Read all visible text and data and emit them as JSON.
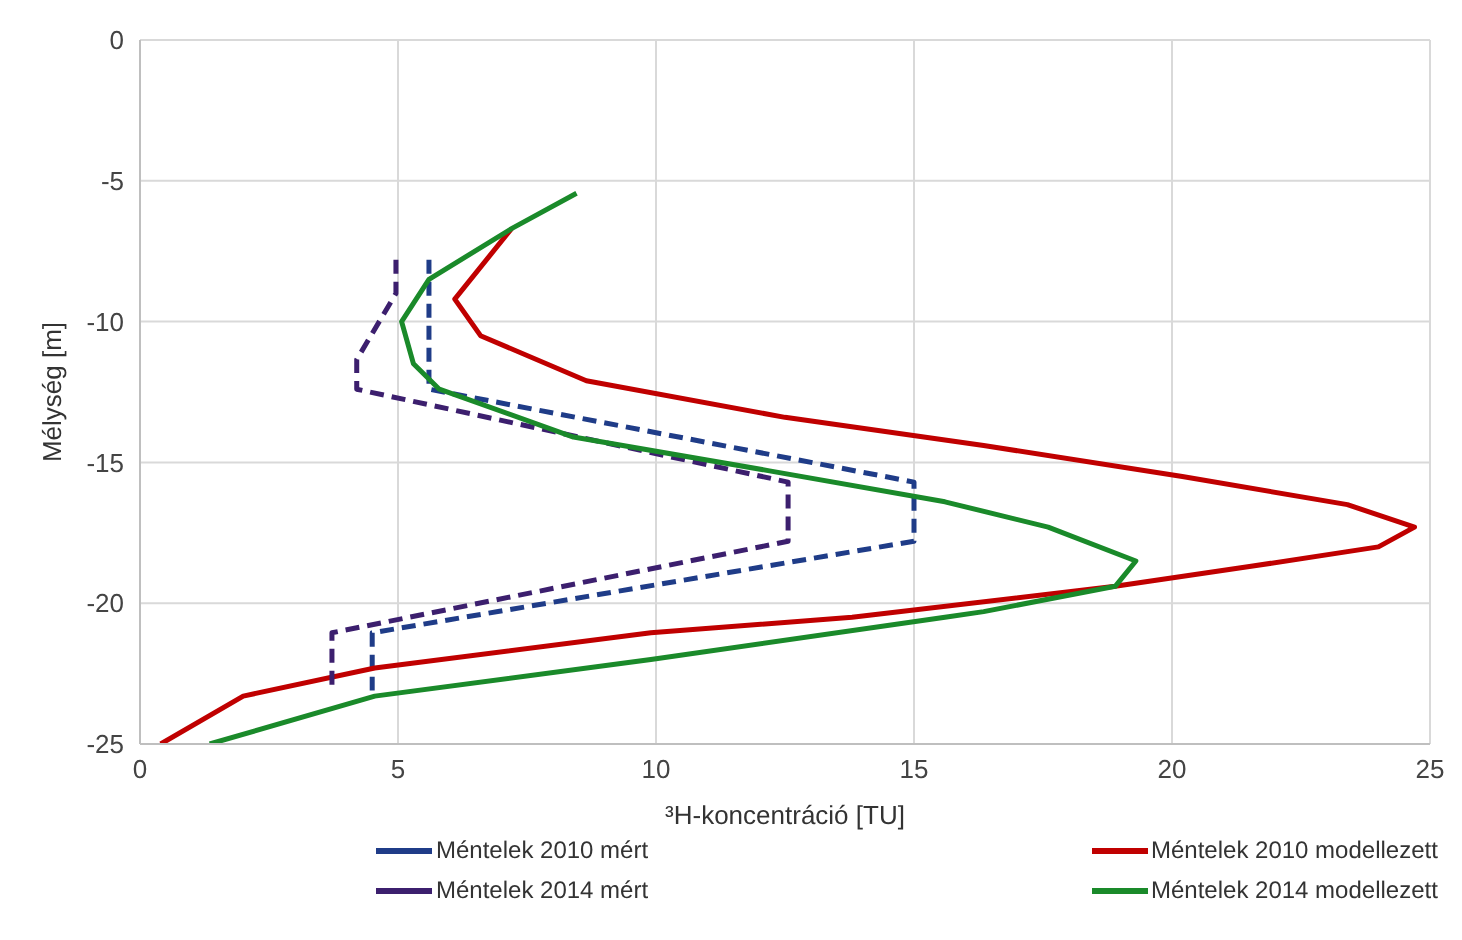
{
  "chart_data": {
    "type": "line",
    "xlabel": "³H-koncentráció [TU]",
    "ylabel": "Mélység [m]",
    "xlim": [
      0,
      25
    ],
    "xticks": [
      0,
      5,
      10,
      15,
      20,
      25
    ],
    "ylim": [
      -25,
      0
    ],
    "yticks": [
      -25,
      -20,
      -15,
      -10,
      -5,
      0
    ],
    "grid": true,
    "legend": "bottom",
    "marker": "none",
    "series": [
      {
        "name": "Méntelek 2010 mért",
        "color": "#1f3c88",
        "line_style": "dashed",
        "x": [
          5.6,
          5.6,
          15,
          15,
          4.5,
          4.5
        ],
        "values": [
          -7.8,
          -12.4,
          -15.7,
          -17.8,
          -21.05,
          -23.1
        ]
      },
      {
        "name": "Méntelek 2010 modellezett",
        "color": "#c00000",
        "line_style": "solid",
        "x": [
          7.2,
          6.1,
          6.6,
          8.65,
          12.5,
          16.35,
          20.2,
          23.4,
          24.7,
          24.0,
          21.5,
          18.9,
          13.8,
          9.9,
          4.55,
          2.0,
          0.4
        ],
        "values": [
          -6.7,
          -9.2,
          -10.5,
          -12.1,
          -13.4,
          -14.4,
          -15.5,
          -16.5,
          -17.3,
          -18.0,
          -18.7,
          -19.4,
          -20.5,
          -21.05,
          -22.3,
          -23.3,
          -25
        ]
      },
      {
        "name": "Méntelek 2014 mért",
        "color": "#3c1f6e",
        "line_style": "dashed",
        "x": [
          4.96,
          4.96,
          4.2,
          4.2,
          12.56,
          12.56,
          3.72,
          3.72
        ],
        "values": [
          -7.8,
          -9.0,
          -11.35,
          -12.4,
          -15.7,
          -17.8,
          -21.05,
          -23.1
        ]
      },
      {
        "name": "Méntelek 2014 modellezett",
        "color": "#1a8a2a",
        "line_style": "solid",
        "x": [
          8.46,
          7.2,
          5.6,
          5.07,
          5.3,
          5.8,
          8.4,
          12.2,
          15.6,
          17.6,
          19.3,
          18.9,
          16.35,
          15.6,
          9.9,
          4.55,
          1.35
        ],
        "values": [
          -5.44,
          -6.7,
          -8.5,
          -10.0,
          -11.5,
          -12.4,
          -14.1,
          -15.3,
          -16.4,
          -17.3,
          -18.5,
          -19.4,
          -20.3,
          -20.5,
          -22.0,
          -23.3,
          -25
        ]
      }
    ]
  }
}
